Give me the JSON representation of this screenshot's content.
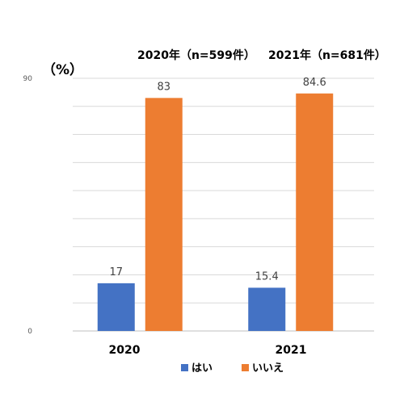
{
  "chart_data": {
    "type": "bar",
    "ylabel": "（%）",
    "ylim": [
      0,
      90
    ],
    "yticks": [
      "0",
      "90"
    ],
    "categories": [
      "2020",
      "2021"
    ],
    "subtitles": [
      "2020年（n=599件）",
      "2021年（n=681件）"
    ],
    "series": [
      {
        "name": "はい",
        "color": "#4472c4",
        "values": [
          17,
          15.4
        ],
        "labels": [
          "17",
          "15.4"
        ]
      },
      {
        "name": "いいえ",
        "color": "#ed7d31",
        "values": [
          83,
          84.6
        ],
        "labels": [
          "83",
          "84.6"
        ]
      }
    ],
    "grid": true,
    "legend": "bottom"
  }
}
